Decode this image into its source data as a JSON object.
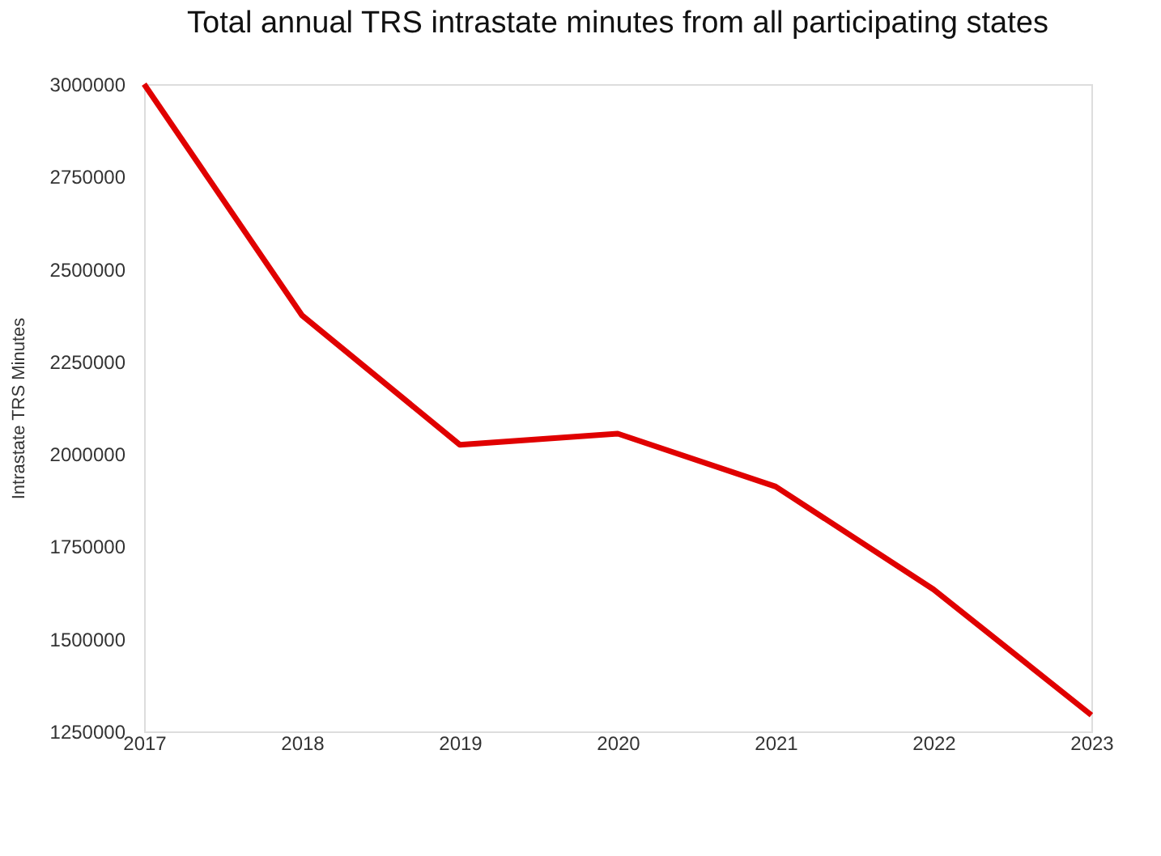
{
  "chart_data": {
    "type": "line",
    "title": "Total annual TRS intrastate minutes from all participating states",
    "ylabel": "Intrastate TRS Minutes",
    "x": [
      2017,
      2018,
      2019,
      2020,
      2021,
      2022,
      2023
    ],
    "series": [
      {
        "color": "#e00000",
        "values": [
          3000000,
          2375000,
          2025000,
          2055000,
          1912000,
          1634000,
          1294000
        ]
      }
    ],
    "xlim": [
      2017,
      2023
    ],
    "xticks": [
      2017,
      2018,
      2019,
      2020,
      2021,
      2022,
      2023
    ],
    "ylim": [
      1250000,
      3000000
    ],
    "yticks": [
      1250000,
      1500000,
      1750000,
      2000000,
      2250000,
      2500000,
      2750000,
      3000000
    ],
    "grid": false,
    "legend": false,
    "marker": "none",
    "line_style": "solid"
  }
}
